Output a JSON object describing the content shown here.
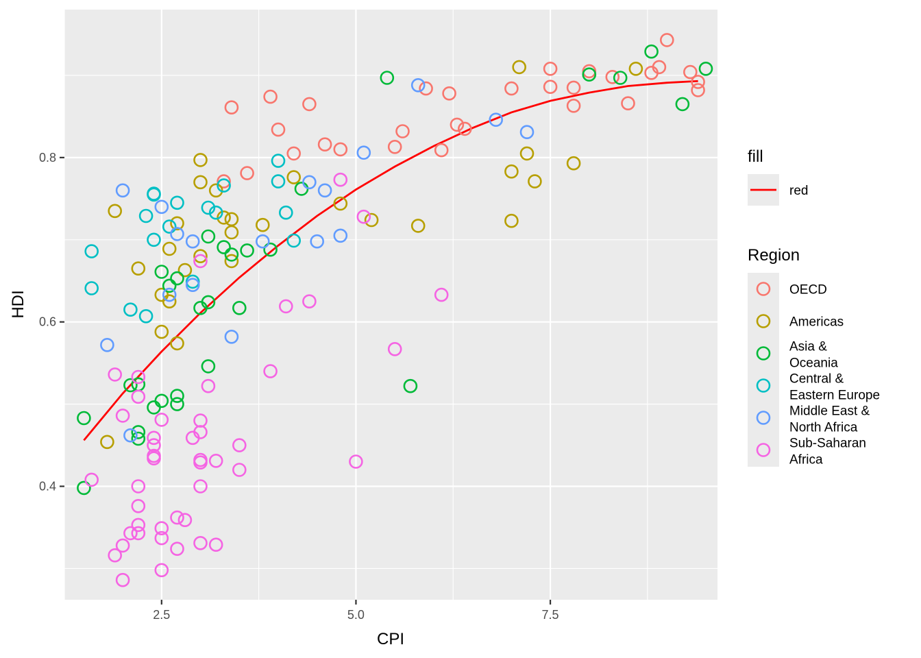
{
  "chart_data": {
    "type": "scatter",
    "xlabel": "CPI",
    "ylabel": "HDI",
    "xlim": [
      1.25,
      9.65
    ],
    "ylim": [
      0.262,
      0.98
    ],
    "x_ticks": [
      2.5,
      5.0,
      7.5
    ],
    "x_tick_labels": [
      "2.5",
      "5.0",
      "7.5"
    ],
    "y_ticks": [
      0.4,
      0.6,
      0.8
    ],
    "y_tick_labels": [
      "0.4",
      "0.6",
      "0.8"
    ],
    "x_minor": [
      1.25,
      3.75,
      6.25,
      8.75
    ],
    "y_minor": [
      0.3,
      0.5,
      0.7,
      0.9
    ],
    "grid": true,
    "legend_position": "right",
    "trend_legend": {
      "title": "fill",
      "label": "red",
      "color": "#FF0000"
    },
    "region_legend_title": "Region",
    "trend_line": {
      "color": "#FF0000",
      "x": [
        1.5,
        2.0,
        2.5,
        3.0,
        3.5,
        4.0,
        4.5,
        5.0,
        5.5,
        6.0,
        6.5,
        7.0,
        7.5,
        8.0,
        8.5,
        9.0,
        9.4
      ],
      "y": [
        0.456,
        0.513,
        0.564,
        0.611,
        0.654,
        0.693,
        0.729,
        0.761,
        0.789,
        0.814,
        0.836,
        0.855,
        0.869,
        0.879,
        0.887,
        0.891,
        0.893
      ]
    },
    "series": [
      {
        "name": "OECD",
        "color": "#F8766D",
        "points": [
          [
            3.3,
            0.771
          ],
          [
            3.4,
            0.861
          ],
          [
            3.6,
            0.781
          ],
          [
            3.9,
            0.874
          ],
          [
            4.0,
            0.834
          ],
          [
            4.2,
            0.805
          ],
          [
            4.4,
            0.865
          ],
          [
            4.6,
            0.816
          ],
          [
            4.8,
            0.81
          ],
          [
            5.5,
            0.813
          ],
          [
            5.6,
            0.832
          ],
          [
            5.9,
            0.884
          ],
          [
            6.1,
            0.809
          ],
          [
            6.2,
            0.878
          ],
          [
            6.3,
            0.84
          ],
          [
            6.4,
            0.835
          ],
          [
            7.0,
            0.884
          ],
          [
            7.5,
            0.908
          ],
          [
            7.5,
            0.886
          ],
          [
            7.8,
            0.885
          ],
          [
            7.8,
            0.863
          ],
          [
            8.0,
            0.905
          ],
          [
            8.3,
            0.898
          ],
          [
            8.5,
            0.866
          ],
          [
            8.8,
            0.903
          ],
          [
            8.9,
            0.91
          ],
          [
            9.0,
            0.943
          ],
          [
            9.3,
            0.904
          ],
          [
            9.4,
            0.892
          ],
          [
            9.4,
            0.882
          ]
        ]
      },
      {
        "name": "Americas",
        "color": "#B79F00",
        "points": [
          [
            1.8,
            0.454
          ],
          [
            1.9,
            0.735
          ],
          [
            2.2,
            0.665
          ],
          [
            2.5,
            0.633
          ],
          [
            2.5,
            0.588
          ],
          [
            2.6,
            0.689
          ],
          [
            2.6,
            0.625
          ],
          [
            2.7,
            0.72
          ],
          [
            2.7,
            0.574
          ],
          [
            2.8,
            0.663
          ],
          [
            3.0,
            0.797
          ],
          [
            3.0,
            0.77
          ],
          [
            3.0,
            0.68
          ],
          [
            3.2,
            0.76
          ],
          [
            3.3,
            0.727
          ],
          [
            3.4,
            0.725
          ],
          [
            3.4,
            0.709
          ],
          [
            3.4,
            0.674
          ],
          [
            3.8,
            0.718
          ],
          [
            4.2,
            0.776
          ],
          [
            4.8,
            0.744
          ],
          [
            5.2,
            0.724
          ],
          [
            5.8,
            0.717
          ],
          [
            7.0,
            0.783
          ],
          [
            7.0,
            0.723
          ],
          [
            7.1,
            0.91
          ],
          [
            7.2,
            0.805
          ],
          [
            7.3,
            0.771
          ],
          [
            7.8,
            0.793
          ],
          [
            8.6,
            0.908
          ]
        ]
      },
      {
        "name": "Asia &\nOceania",
        "color": "#00BA38",
        "points": [
          [
            1.5,
            0.483
          ],
          [
            1.5,
            0.398
          ],
          [
            2.1,
            0.523
          ],
          [
            2.2,
            0.524
          ],
          [
            2.2,
            0.466
          ],
          [
            2.2,
            0.458
          ],
          [
            2.4,
            0.496
          ],
          [
            2.5,
            0.504
          ],
          [
            2.5,
            0.661
          ],
          [
            2.6,
            0.644
          ],
          [
            2.7,
            0.653
          ],
          [
            2.7,
            0.51
          ],
          [
            2.7,
            0.5
          ],
          [
            3.0,
            0.617
          ],
          [
            3.1,
            0.624
          ],
          [
            3.1,
            0.546
          ],
          [
            3.1,
            0.704
          ],
          [
            3.3,
            0.691
          ],
          [
            3.4,
            0.682
          ],
          [
            3.5,
            0.617
          ],
          [
            3.6,
            0.687
          ],
          [
            3.9,
            0.688
          ],
          [
            4.3,
            0.762
          ],
          [
            5.4,
            0.897
          ],
          [
            5.7,
            0.522
          ],
          [
            8.0,
            0.901
          ],
          [
            8.4,
            0.897
          ],
          [
            8.8,
            0.929
          ],
          [
            9.2,
            0.865
          ],
          [
            9.5,
            0.908
          ]
        ]
      },
      {
        "name": "Central &\nEastern Europe",
        "color": "#00BFC4",
        "points": [
          [
            1.6,
            0.686
          ],
          [
            1.6,
            0.641
          ],
          [
            2.1,
            0.615
          ],
          [
            2.3,
            0.729
          ],
          [
            2.3,
            0.607
          ],
          [
            2.4,
            0.755
          ],
          [
            2.4,
            0.756
          ],
          [
            2.4,
            0.7
          ],
          [
            2.6,
            0.716
          ],
          [
            2.7,
            0.745
          ],
          [
            2.9,
            0.649
          ],
          [
            3.1,
            0.739
          ],
          [
            3.2,
            0.733
          ],
          [
            3.3,
            0.766
          ],
          [
            4.0,
            0.796
          ],
          [
            4.0,
            0.771
          ],
          [
            4.1,
            0.733
          ],
          [
            4.2,
            0.699
          ]
        ]
      },
      {
        "name": "Middle East &\nNorth Africa",
        "color": "#619CFF",
        "points": [
          [
            1.8,
            0.572
          ],
          [
            2.0,
            0.76
          ],
          [
            2.1,
            0.462
          ],
          [
            2.5,
            0.74
          ],
          [
            2.6,
            0.633
          ],
          [
            2.7,
            0.707
          ],
          [
            2.9,
            0.698
          ],
          [
            2.9,
            0.645
          ],
          [
            3.4,
            0.582
          ],
          [
            3.8,
            0.698
          ],
          [
            4.4,
            0.77
          ],
          [
            4.5,
            0.698
          ],
          [
            4.6,
            0.76
          ],
          [
            4.8,
            0.705
          ],
          [
            5.1,
            0.806
          ],
          [
            5.8,
            0.888
          ],
          [
            6.8,
            0.846
          ],
          [
            7.2,
            0.831
          ]
        ]
      },
      {
        "name": "Sub-Saharan\nAfrica",
        "color": "#F564E3",
        "points": [
          [
            1.6,
            0.408
          ],
          [
            1.9,
            0.536
          ],
          [
            1.9,
            0.316
          ],
          [
            2.0,
            0.486
          ],
          [
            2.0,
            0.328
          ],
          [
            2.0,
            0.286
          ],
          [
            2.1,
            0.343
          ],
          [
            2.2,
            0.533
          ],
          [
            2.2,
            0.509
          ],
          [
            2.2,
            0.4
          ],
          [
            2.2,
            0.376
          ],
          [
            2.2,
            0.353
          ],
          [
            2.2,
            0.343
          ],
          [
            2.4,
            0.459
          ],
          [
            2.4,
            0.45
          ],
          [
            2.4,
            0.437
          ],
          [
            2.4,
            0.434
          ],
          [
            2.5,
            0.481
          ],
          [
            2.5,
            0.349
          ],
          [
            2.5,
            0.337
          ],
          [
            2.5,
            0.298
          ],
          [
            2.7,
            0.362
          ],
          [
            2.7,
            0.324
          ],
          [
            2.8,
            0.359
          ],
          [
            2.9,
            0.459
          ],
          [
            3.0,
            0.674
          ],
          [
            3.0,
            0.48
          ],
          [
            3.0,
            0.466
          ],
          [
            3.0,
            0.429
          ],
          [
            3.0,
            0.432
          ],
          [
            3.0,
            0.4
          ],
          [
            3.0,
            0.331
          ],
          [
            3.1,
            0.522
          ],
          [
            3.2,
            0.431
          ],
          [
            3.2,
            0.329
          ],
          [
            3.5,
            0.45
          ],
          [
            3.5,
            0.42
          ],
          [
            3.9,
            0.54
          ],
          [
            4.1,
            0.619
          ],
          [
            4.4,
            0.625
          ],
          [
            4.8,
            0.773
          ],
          [
            5.0,
            0.43
          ],
          [
            5.1,
            0.728
          ],
          [
            5.5,
            0.567
          ],
          [
            6.1,
            0.633
          ]
        ]
      }
    ]
  }
}
